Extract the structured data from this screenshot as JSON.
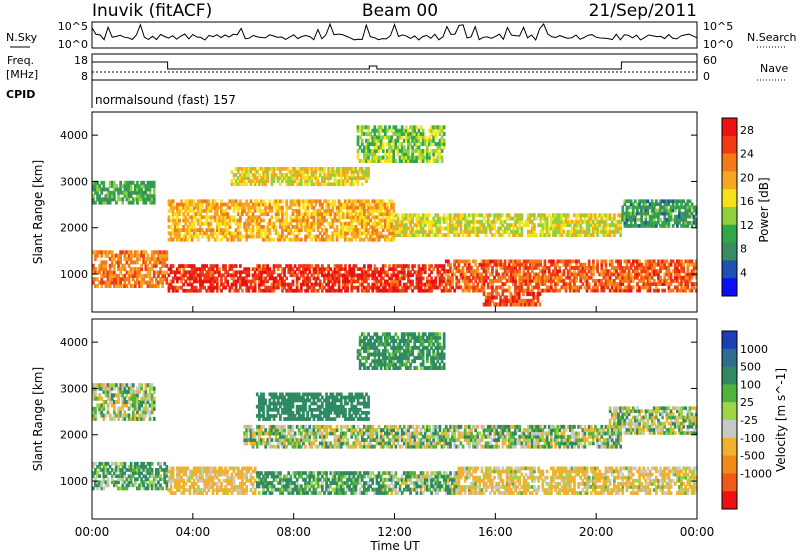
{
  "header": {
    "station": "Inuvik (fitACF)",
    "beam": "Beam 00",
    "date": "21/Sep/2011"
  },
  "noise_panel": {
    "left_label": "N.Sky",
    "right_label": "N.Search",
    "left_ticks": [
      "10^5",
      "10^0"
    ],
    "right_ticks": [
      "10^5",
      "10^0"
    ]
  },
  "freq_panel": {
    "left_label_line1": "Freq.",
    "left_label_line2": "[MHz]",
    "right_label": "Nave",
    "left_ticks": [
      "18",
      "8"
    ],
    "right_ticks": [
      "60",
      "0"
    ]
  },
  "cpid": {
    "label": "CPID",
    "program": "normalsound (fast) 157"
  },
  "colors": {
    "power_scale": [
      "#0a10f0",
      "#1f4fb0",
      "#3c8c62",
      "#2fa84a",
      "#8fd13a",
      "#f7e21a",
      "#f5a623",
      "#f47a1a",
      "#ef3a14",
      "#ee1111"
    ],
    "velocity_scale": [
      "#1c3fb8",
      "#2d6d8f",
      "#2f8a63",
      "#52b33c",
      "#9ed647",
      "#c8c8c8",
      "#f1b02e",
      "#f08a1a",
      "#ef5a16",
      "#ee1111"
    ]
  },
  "chart_data": [
    {
      "type": "heatmap",
      "title": "",
      "xlabel": "Time UT",
      "ylabel": "Slant Range [km]",
      "x_ticks": [
        "00:00",
        "04:00",
        "08:00",
        "12:00",
        "16:00",
        "20:00",
        "00:00"
      ],
      "y_ticks": [
        "1000",
        "2000",
        "3000",
        "4000"
      ],
      "xlim_hours": [
        0,
        24
      ],
      "ylim_km": [
        180,
        4500
      ],
      "colorbar_label": "Power [dB]",
      "colorbar_ticks": [
        "4",
        "8",
        "12",
        "16",
        "20",
        "24",
        "28"
      ],
      "colorbar_range": [
        0,
        30
      ],
      "bands": [
        {
          "t0": 0.0,
          "t1": 3.0,
          "r0": 700,
          "r1": 1500,
          "level": 22
        },
        {
          "t0": 3.0,
          "t1": 14.0,
          "r0": 600,
          "r1": 1200,
          "level": 27
        },
        {
          "t0": 14.0,
          "t1": 24.0,
          "r0": 600,
          "r1": 1300,
          "level": 24
        },
        {
          "t0": 0.0,
          "t1": 2.5,
          "r0": 2500,
          "r1": 3000,
          "level": 10
        },
        {
          "t0": 3.0,
          "t1": 12.0,
          "r0": 1700,
          "r1": 2600,
          "level": 19
        },
        {
          "t0": 12.0,
          "t1": 21.0,
          "r0": 1800,
          "r1": 2300,
          "level": 16
        },
        {
          "t0": 21.0,
          "t1": 24.0,
          "r0": 2000,
          "r1": 2600,
          "level": 9
        },
        {
          "t0": 5.5,
          "t1": 11.0,
          "r0": 2900,
          "r1": 3300,
          "level": 17
        },
        {
          "t0": 10.5,
          "t1": 14.0,
          "r0": 3400,
          "r1": 4200,
          "level": 13
        },
        {
          "t0": 15.5,
          "t1": 17.8,
          "r0": 300,
          "r1": 600,
          "level": 25
        }
      ]
    },
    {
      "type": "heatmap",
      "title": "",
      "xlabel": "Time UT",
      "ylabel": "Slant Range [km]",
      "x_ticks": [
        "00:00",
        "04:00",
        "08:00",
        "12:00",
        "16:00",
        "20:00",
        "00:00"
      ],
      "y_ticks": [
        "1000",
        "2000",
        "3000",
        "4000"
      ],
      "xlim_hours": [
        0,
        24
      ],
      "ylim_km": [
        180,
        4500
      ],
      "colorbar_label": "Velocity [m s^-1]",
      "colorbar_ticks": [
        "1000",
        "500",
        "100",
        "25",
        "-25",
        "-100",
        "-500",
        "-1000"
      ],
      "colorbar_range": [
        -1000,
        1000
      ],
      "bands": [
        {
          "t0": 0.0,
          "t1": 3.0,
          "r0": 800,
          "r1": 1400,
          "level": 120
        },
        {
          "t0": 3.0,
          "t1": 6.5,
          "r0": 700,
          "r1": 1300,
          "level": -200
        },
        {
          "t0": 6.5,
          "t1": 11.5,
          "r0": 700,
          "r1": 1200,
          "level": 150
        },
        {
          "t0": 11.5,
          "t1": 14.5,
          "r0": 700,
          "r1": 1200,
          "level": 60
        },
        {
          "t0": 14.5,
          "t1": 24.0,
          "r0": 700,
          "r1": 1300,
          "level": -150
        },
        {
          "t0": 0.0,
          "t1": 2.5,
          "r0": 2300,
          "r1": 3100,
          "level": 0
        },
        {
          "t0": 6.5,
          "t1": 11.0,
          "r0": 2300,
          "r1": 2900,
          "level": 300
        },
        {
          "t0": 6.0,
          "t1": 21.0,
          "r0": 1700,
          "r1": 2200,
          "level": 0
        },
        {
          "t0": 20.5,
          "t1": 24.0,
          "r0": 2000,
          "r1": 2600,
          "level": 0
        },
        {
          "t0": 10.5,
          "t1": 14.0,
          "r0": 3400,
          "r1": 4200,
          "level": 200
        }
      ]
    }
  ]
}
